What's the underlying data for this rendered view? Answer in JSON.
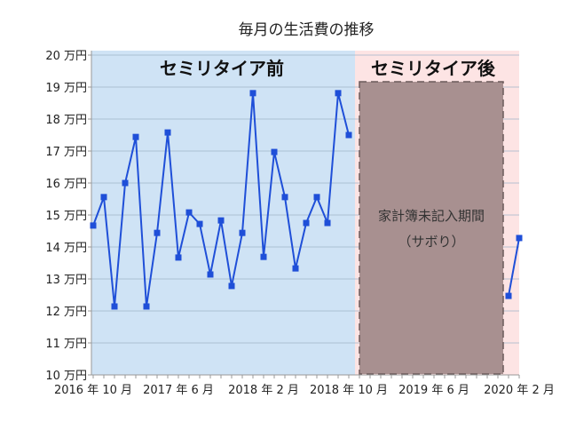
{
  "chart_data": {
    "type": "line",
    "title": "毎月の生活費の推移",
    "xlabel": "",
    "ylabel": "",
    "ylim": [
      10,
      20
    ],
    "y_ticks": [
      "10 万円",
      "11 万円",
      "12 万円",
      "13 万円",
      "14 万円",
      "15 万円",
      "16 万円",
      "17 万円",
      "18 万円",
      "19 万円",
      "20 万円"
    ],
    "x_range": [
      "2016-10",
      "2020-02"
    ],
    "x_tick_labels": [
      "2016 年 10 月",
      "2017 年 6 月",
      "2018 年 2 月",
      "2018 年 10 月",
      "2019 年 6 月",
      "2020 年 2 月"
    ],
    "grid": true,
    "legend": "none",
    "series": [
      {
        "color": "#1f4fd8",
        "marker": "square",
        "x": [
          "2016-10",
          "2016-11",
          "2016-12",
          "2017-01",
          "2017-02",
          "2017-03",
          "2017-04",
          "2017-05",
          "2017-06",
          "2017-07",
          "2017-08",
          "2017-09",
          "2017-10",
          "2017-11",
          "2017-12",
          "2018-01",
          "2018-02",
          "2018-03",
          "2018-04",
          "2018-05",
          "2018-06",
          "2018-07",
          "2018-08",
          "2018-09",
          "2018-10",
          "2018-11",
          "2018-12",
          "2019-01",
          "2019-02",
          "2019-03",
          "2019-04",
          "2019-05",
          "2019-06",
          "2019-07",
          "2019-08",
          "2019-09",
          "2019-10",
          "2019-11",
          "2019-12",
          "2020-01",
          "2020-02"
        ],
        "values": [
          14.67,
          15.56,
          12.14,
          16.0,
          17.44,
          12.14,
          14.44,
          17.58,
          13.67,
          15.08,
          14.72,
          13.14,
          14.83,
          12.78,
          14.44,
          18.81,
          13.69,
          16.97,
          15.56,
          13.33,
          14.75,
          15.56,
          14.75,
          18.81,
          17.5,
          null,
          null,
          null,
          null,
          null,
          null,
          null,
          null,
          null,
          null,
          null,
          null,
          null,
          null,
          12.47,
          14.28
        ]
      }
    ],
    "annotations": {
      "before_label": "セミリタイア前",
      "after_label": "セミリタイア後",
      "gap_label_line1": "家計簿未記入期間",
      "gap_label_line2": "（サボり）"
    },
    "colors": {
      "before_region": "#cfe3f5",
      "after_region": "#fde4e4",
      "gap_box": "#a89090",
      "line": "#1f4fd8",
      "grid": "#9fb4c8"
    }
  }
}
